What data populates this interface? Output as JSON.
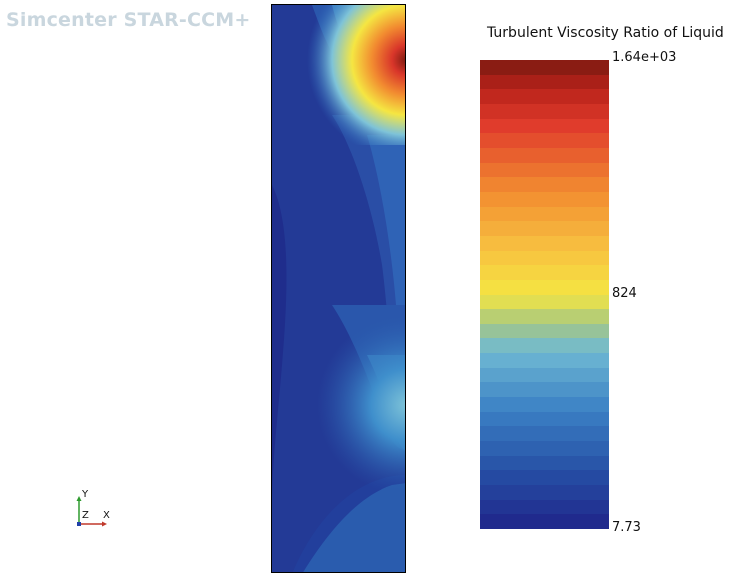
{
  "app": {
    "watermark": "Simcenter STAR-CCM+"
  },
  "scalar_bar": {
    "title": "Turbulent Viscosity Ratio of Liquid",
    "max_label": "1.64e+03",
    "mid_label": "824",
    "min_label": "7.73",
    "min": 7.73,
    "max": 1640,
    "levels": 32
  },
  "axes_triad": {
    "y_label": "Y",
    "z_label": "Z",
    "x_label": "X"
  },
  "colors": {
    "deep_blue": "#1f2a8c",
    "blue": "#2f6fc0",
    "light_blue": "#7ec3d8",
    "yellow": "#f5e642",
    "orange": "#f28c30",
    "red": "#d9362a",
    "dark_red": "#7a1a10"
  }
}
